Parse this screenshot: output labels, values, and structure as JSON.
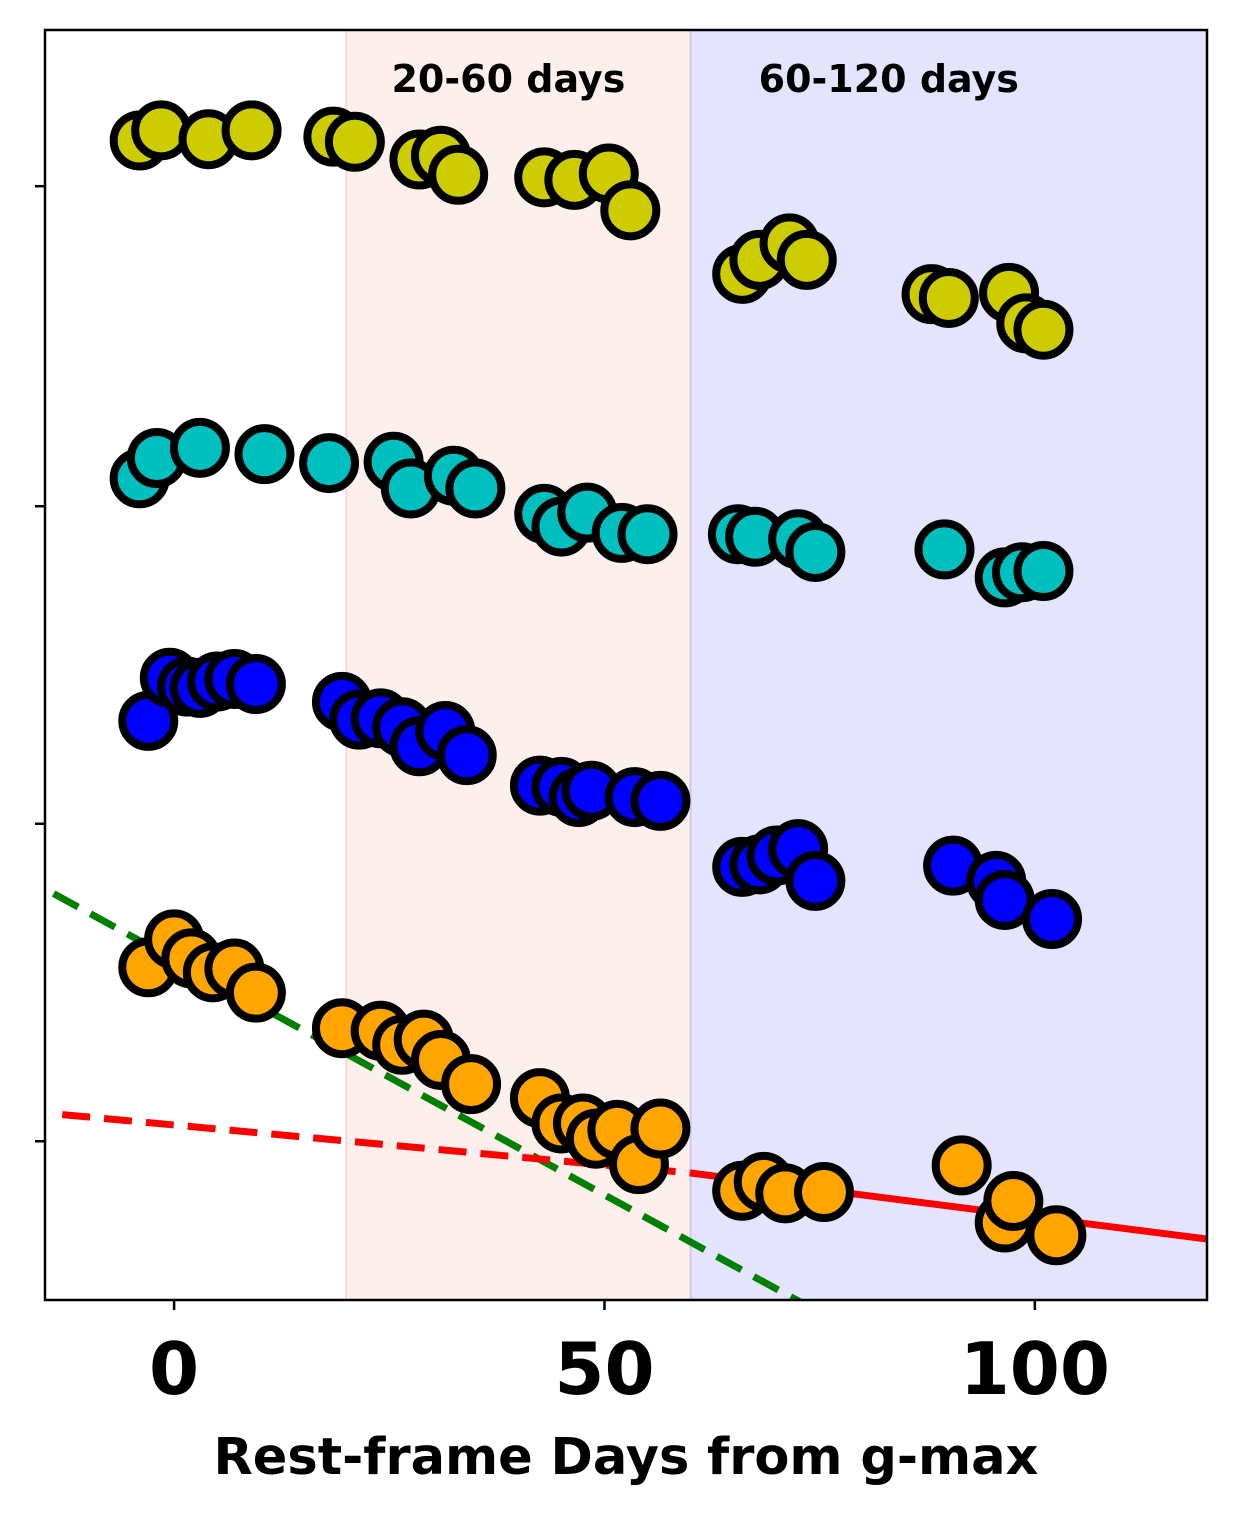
{
  "chart_data": {
    "type": "scatter",
    "xlabel": "Rest-frame Days from g-max",
    "ylabel": "",
    "xlim": [
      -15,
      120
    ],
    "ylim": [
      0,
      100
    ],
    "xticks": [
      0,
      50,
      100
    ],
    "xtick_labels": [
      "0",
      "50",
      "100"
    ],
    "yticks": [
      12.5,
      37.5,
      62.5,
      87.7
    ],
    "ytick_labels_shown": false,
    "grid": false,
    "legend": "none",
    "regions": [
      {
        "label": "20-60 days",
        "x0": 20,
        "x1": 60,
        "color": "#fdf0ec"
      },
      {
        "label": "60-120 days",
        "x0": 60,
        "x1": 120,
        "color": "#e4e4fe"
      }
    ],
    "lines": [
      {
        "color": "#008000",
        "style": "dashed",
        "x": [
          -14,
          102
        ],
        "y": [
          32.0,
          -11.0
        ]
      },
      {
        "color": "#ff0000",
        "style": "dashed",
        "x": [
          -13,
          60
        ],
        "y": [
          14.6,
          10.0
        ]
      },
      {
        "color": "#ff0000",
        "style": "solid",
        "x": [
          60,
          120
        ],
        "y": [
          10.0,
          4.8
        ]
      }
    ],
    "series": [
      {
        "color": "#cccc00",
        "points": [
          [
            -4,
            91.3
          ],
          [
            -1.5,
            92.1
          ],
          [
            4,
            91.4
          ],
          [
            9,
            92.1
          ],
          [
            18.5,
            91.6
          ],
          [
            21,
            91.2
          ],
          [
            28.5,
            89.8
          ],
          [
            31,
            90.1
          ],
          [
            33,
            88.6
          ],
          [
            43,
            88.4
          ],
          [
            46.5,
            88.2
          ],
          [
            50.5,
            88.7
          ],
          [
            53,
            85.8
          ],
          [
            66,
            80.8
          ],
          [
            68,
            81.9
          ],
          [
            71.5,
            83.2
          ],
          [
            73.5,
            81.9
          ],
          [
            88,
            79.2
          ],
          [
            90,
            78.9
          ],
          [
            97,
            79.3
          ],
          [
            99,
            76.9
          ],
          [
            101,
            76.4
          ]
        ]
      },
      {
        "color": "#00bfbf",
        "points": [
          [
            -4,
            64.7
          ],
          [
            -2,
            66.3
          ],
          [
            3,
            67.1
          ],
          [
            10.5,
            66.6
          ],
          [
            18,
            65.9
          ],
          [
            25.5,
            66.0
          ],
          [
            27.5,
            63.9
          ],
          [
            32.5,
            64.9
          ],
          [
            35,
            63.9
          ],
          [
            43,
            61.9
          ],
          [
            45,
            60.9
          ],
          [
            48,
            62.0
          ],
          [
            52,
            60.4
          ],
          [
            55,
            60.3
          ],
          [
            65.5,
            60.3
          ],
          [
            67.5,
            60.1
          ],
          [
            72.5,
            59.9
          ],
          [
            74.5,
            58.9
          ],
          [
            89.5,
            59.1
          ],
          [
            96.5,
            56.9
          ],
          [
            98.5,
            57.3
          ],
          [
            101,
            57.4
          ]
        ]
      },
      {
        "color": "#0000ff",
        "points": [
          [
            -3,
            45.6
          ],
          [
            -0.5,
            49.0
          ],
          [
            1.5,
            48.3
          ],
          [
            3,
            48.2
          ],
          [
            5,
            48.7
          ],
          [
            7,
            48.9
          ],
          [
            9.5,
            48.5
          ],
          [
            19.5,
            47.1
          ],
          [
            21.5,
            45.7
          ],
          [
            24,
            45.8
          ],
          [
            26.5,
            45.1
          ],
          [
            28.5,
            43.6
          ],
          [
            31.5,
            44.8
          ],
          [
            34,
            42.9
          ],
          [
            42.5,
            40.5
          ],
          [
            45,
            40.4
          ],
          [
            47,
            39.6
          ],
          [
            48.5,
            40.1
          ],
          [
            53.5,
            39.6
          ],
          [
            56.5,
            39.3
          ],
          [
            66,
            34.1
          ],
          [
            68,
            34.3
          ],
          [
            70,
            35.0
          ],
          [
            72.5,
            35.5
          ],
          [
            74.5,
            33.0
          ],
          [
            90.5,
            34.2
          ],
          [
            95.5,
            33.0
          ],
          [
            96.5,
            31.5
          ],
          [
            102,
            30.0
          ]
        ]
      },
      {
        "color": "#ffa500",
        "points": [
          [
            -3,
            26.2
          ],
          [
            0,
            28.4
          ],
          [
            2,
            26.9
          ],
          [
            4.5,
            25.8
          ],
          [
            7,
            26.1
          ],
          [
            9.5,
            24.2
          ],
          [
            19.5,
            21.4
          ],
          [
            24,
            21.2
          ],
          [
            26.5,
            20.1
          ],
          [
            29,
            20.5
          ],
          [
            31,
            18.9
          ],
          [
            34.5,
            17.0
          ],
          [
            42.5,
            15.9
          ],
          [
            45,
            13.9
          ],
          [
            47.5,
            13.9
          ],
          [
            49,
            12.7
          ],
          [
            51.5,
            13.4
          ],
          [
            54,
            10.7
          ],
          [
            56.5,
            13.5
          ],
          [
            66,
            8.6
          ],
          [
            68.5,
            9.3
          ],
          [
            71,
            8.4
          ],
          [
            75.5,
            8.5
          ],
          [
            91.5,
            10.6
          ],
          [
            96.5,
            6.1
          ],
          [
            97.5,
            7.8
          ],
          [
            102.5,
            5.1
          ]
        ]
      }
    ]
  }
}
